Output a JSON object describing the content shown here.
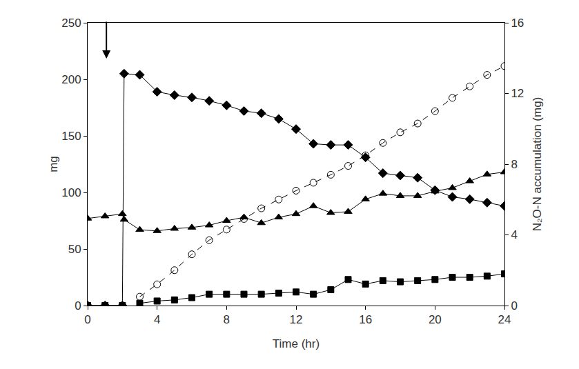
{
  "chart_data": {
    "type": "line",
    "x_label": "Time (hr)",
    "y_label": "mg",
    "y2_label": "N₂O-N accumulation (mg)",
    "x": [
      0,
      1,
      2,
      2.1,
      3,
      4,
      5,
      6,
      7,
      8,
      9,
      10,
      11,
      12,
      13,
      14,
      15,
      16,
      17,
      18,
      19,
      20,
      21,
      22,
      23,
      24
    ],
    "xlim": [
      0,
      24
    ],
    "xticks": [
      0,
      4,
      8,
      12,
      16,
      20,
      24
    ],
    "ylim": [
      0,
      250
    ],
    "yticks": [
      0,
      50,
      100,
      150,
      200,
      250
    ],
    "y2lim": [
      0,
      16
    ],
    "y2ticks": [
      0,
      4,
      8,
      12,
      16
    ],
    "grid": false,
    "series": [
      {
        "color": "#000000",
        "marker": "diamond",
        "line_style": "solid",
        "values": [
          0,
          0,
          0,
          205,
          204,
          189,
          186,
          184,
          181,
          177,
          172,
          170,
          165,
          156,
          143,
          142,
          142,
          131,
          117,
          115,
          113,
          102,
          96,
          94,
          91,
          88
        ]
      },
      {
        "color": "#000000",
        "marker": "triangle-up",
        "line_style": "solid",
        "values": [
          77,
          79,
          81,
          76,
          67,
          66,
          68,
          69,
          71,
          75,
          78,
          73,
          78,
          81,
          88,
          82,
          83,
          94,
          99,
          97,
          97,
          101,
          104,
          110,
          116,
          118
        ]
      },
      {
        "color": "#000000",
        "marker": "square",
        "line_style": "solid",
        "values": [
          0,
          0,
          0,
          null,
          2,
          4,
          5,
          7,
          10,
          10,
          10,
          10,
          11,
          12,
          10,
          14,
          23,
          19,
          22,
          21,
          22,
          23,
          25,
          25,
          26,
          28
        ]
      },
      {
        "color": "#000000",
        "marker": "circle-open",
        "line_style": "dash",
        "axis": "y2",
        "values": [
          null,
          null,
          null,
          null,
          0.5,
          1.2,
          2.0,
          2.9,
          3.7,
          4.3,
          4.9,
          5.5,
          6.0,
          6.5,
          6.95,
          7.4,
          7.9,
          8.5,
          9.2,
          9.8,
          10.3,
          11.0,
          11.75,
          12.4,
          13.05,
          13.55
        ]
      }
    ]
  }
}
